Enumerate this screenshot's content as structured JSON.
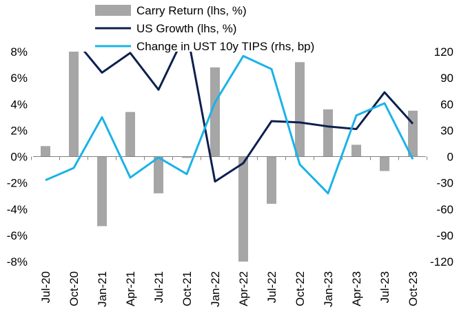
{
  "chart_data": {
    "type": "bar+line",
    "categories": [
      "Jul-20",
      "Oct-20",
      "Jan-21",
      "Apr-21",
      "Jul-21",
      "Oct-21",
      "Jan-22",
      "Apr-22",
      "Jul-22",
      "Oct-22",
      "Jan-23",
      "Apr-23",
      "Jul-23",
      "Oct-23"
    ],
    "series": [
      {
        "name": "Carry Return (lhs, %)",
        "type": "bar",
        "axis": "left",
        "color": "#a6a6a6",
        "values": [
          0.8,
          8.0,
          -5.3,
          3.4,
          -2.8,
          -0.1,
          6.8,
          -8.0,
          -3.6,
          7.2,
          3.6,
          0.9,
          -1.1,
          3.5
        ]
      },
      {
        "name": "US Growth (lhs, %)",
        "type": "line",
        "axis": "left",
        "color": "#0c1f4f",
        "values": [
          null,
          9.0,
          6.4,
          7.9,
          5.1,
          9.6,
          -1.9,
          -0.5,
          2.7,
          2.6,
          2.3,
          2.1,
          4.9,
          2.5
        ]
      },
      {
        "name": "Change in UST 10y TIPS (rhs, bp)",
        "type": "line",
        "axis": "right",
        "color": "#1ab2e8",
        "values": [
          -27,
          -13,
          45,
          -24,
          -1,
          -20,
          62,
          115,
          100,
          -9,
          -42,
          47,
          61,
          -3
        ]
      }
    ],
    "left_axis": {
      "min": -8,
      "max": 8,
      "step": 2,
      "tick_labels": [
        "-8%",
        "-6%",
        "-4%",
        "-2%",
        "0%",
        "2%",
        "4%",
        "6%",
        "8%"
      ]
    },
    "right_axis": {
      "min": -120,
      "max": 120,
      "step": 30,
      "tick_labels": [
        "-120",
        "-90",
        "-60",
        "-30",
        "0",
        "30",
        "60",
        "90",
        "120"
      ]
    },
    "grid": false,
    "legend_position": "top"
  }
}
